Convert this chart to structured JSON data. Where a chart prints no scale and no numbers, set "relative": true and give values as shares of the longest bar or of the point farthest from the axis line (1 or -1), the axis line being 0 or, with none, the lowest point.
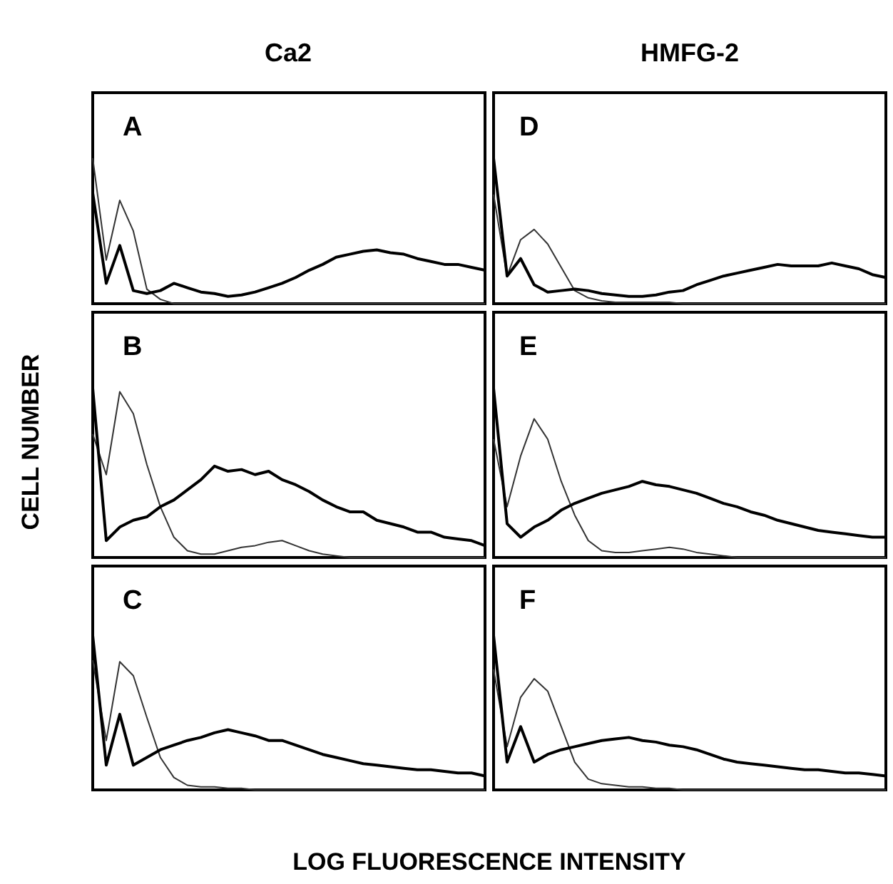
{
  "chart_data": [
    {
      "type": "line",
      "title": "Ca2",
      "subtitle": "A",
      "relative": true,
      "categories": [
        null,
        null,
        null,
        null,
        null,
        null,
        null,
        null,
        null,
        null,
        null,
        null,
        null,
        null,
        null,
        null,
        null,
        null,
        null,
        null,
        null,
        null,
        null,
        null,
        null,
        null,
        null,
        null,
        null,
        null
      ],
      "series": [
        {
          "color": "#333333",
          "values": [
            1,
            0.3,
            0.71,
            0.5,
            0.1,
            0.03,
            0,
            0,
            0,
            0,
            0,
            0,
            0,
            0,
            0,
            0,
            0,
            0,
            0,
            0,
            0,
            0,
            0,
            0,
            0,
            0,
            0,
            0,
            0,
            0
          ]
        },
        {
          "color": "#000000",
          "values": [
            0.76,
            0.14,
            0.4,
            0.09,
            0.07,
            0.09,
            0.14,
            0.11,
            0.08,
            0.07,
            0.05,
            0.06,
            0.08,
            0.11,
            0.14,
            0.18,
            0.23,
            0.27,
            0.32,
            0.34,
            0.36,
            0.37,
            0.35,
            0.34,
            0.31,
            0.29,
            0.27,
            0.27,
            0.25,
            0.23
          ]
        }
      ]
    },
    {
      "type": "line",
      "title": "HMFG-2",
      "subtitle": "D",
      "relative": true,
      "categories": [
        null,
        null,
        null,
        null,
        null,
        null,
        null,
        null,
        null,
        null,
        null,
        null,
        null,
        null,
        null,
        null,
        null,
        null,
        null,
        null,
        null,
        null,
        null,
        null,
        null,
        null,
        null,
        null,
        null,
        null
      ],
      "series": [
        {
          "color": "#333333",
          "values": [
            0.75,
            0.19,
            0.44,
            0.51,
            0.41,
            0.25,
            0.09,
            0.04,
            0.02,
            0.01,
            0.01,
            0.01,
            0.01,
            0.01,
            0,
            0,
            0,
            0,
            0,
            0,
            0,
            0,
            0,
            0,
            0,
            0,
            0,
            0,
            0,
            0
          ]
        },
        {
          "color": "#000000",
          "values": [
            1,
            0.19,
            0.31,
            0.13,
            0.08,
            0.09,
            0.1,
            0.09,
            0.07,
            0.06,
            0.05,
            0.05,
            0.06,
            0.08,
            0.09,
            0.13,
            0.16,
            0.19,
            0.21,
            0.23,
            0.25,
            0.27,
            0.26,
            0.26,
            0.26,
            0.28,
            0.26,
            0.24,
            0.2,
            0.18
          ]
        }
      ]
    },
    {
      "type": "line",
      "subtitle": "B",
      "ylabel": "CELL NUMBER",
      "relative": true,
      "categories": [
        null,
        null,
        null,
        null,
        null,
        null,
        null,
        null,
        null,
        null,
        null,
        null,
        null,
        null,
        null,
        null,
        null,
        null,
        null,
        null,
        null,
        null,
        null,
        null,
        null,
        null,
        null,
        null,
        null,
        null
      ],
      "series": [
        {
          "color": "#333333",
          "values": [
            0.73,
            0.49,
            0.98,
            0.85,
            0.55,
            0.3,
            0.12,
            0.04,
            0.02,
            0.02,
            0.04,
            0.06,
            0.07,
            0.09,
            0.1,
            0.07,
            0.04,
            0.02,
            0.01,
            0,
            0,
            0,
            0,
            0,
            0,
            0,
            0,
            0,
            0,
            0
          ]
        },
        {
          "color": "#000000",
          "values": [
            1,
            0.1,
            0.18,
            0.22,
            0.24,
            0.3,
            0.34,
            0.4,
            0.46,
            0.54,
            0.51,
            0.52,
            0.49,
            0.51,
            0.46,
            0.43,
            0.39,
            0.34,
            0.3,
            0.27,
            0.27,
            0.22,
            0.2,
            0.18,
            0.15,
            0.15,
            0.12,
            0.11,
            0.1,
            0.07
          ]
        }
      ]
    },
    {
      "type": "line",
      "subtitle": "E",
      "relative": true,
      "categories": [
        null,
        null,
        null,
        null,
        null,
        null,
        null,
        null,
        null,
        null,
        null,
        null,
        null,
        null,
        null,
        null,
        null,
        null,
        null,
        null,
        null,
        null,
        null,
        null,
        null,
        null,
        null,
        null,
        null,
        null
      ],
      "series": [
        {
          "color": "#333333",
          "values": [
            0.7,
            0.3,
            0.6,
            0.82,
            0.7,
            0.45,
            0.25,
            0.1,
            0.04,
            0.03,
            0.03,
            0.04,
            0.05,
            0.06,
            0.05,
            0.03,
            0.02,
            0.01,
            0,
            0,
            0,
            0,
            0,
            0,
            0,
            0,
            0,
            0,
            0,
            0
          ]
        },
        {
          "color": "#000000",
          "values": [
            1,
            0.2,
            0.12,
            0.18,
            0.22,
            0.28,
            0.32,
            0.35,
            0.38,
            0.4,
            0.42,
            0.45,
            0.43,
            0.42,
            0.4,
            0.38,
            0.35,
            0.32,
            0.3,
            0.27,
            0.25,
            0.22,
            0.2,
            0.18,
            0.16,
            0.15,
            0.14,
            0.13,
            0.12,
            0.12
          ]
        }
      ]
    },
    {
      "type": "line",
      "subtitle": "C",
      "xlabel": "LOG FLUORESCENCE INTENSITY",
      "relative": true,
      "categories": [
        null,
        null,
        null,
        null,
        null,
        null,
        null,
        null,
        null,
        null,
        null,
        null,
        null,
        null,
        null,
        null,
        null,
        null,
        null,
        null,
        null,
        null,
        null,
        null,
        null,
        null,
        null,
        null,
        null,
        null
      ],
      "series": [
        {
          "color": "#333333",
          "values": [
            0.84,
            0.32,
            0.83,
            0.74,
            0.47,
            0.21,
            0.08,
            0.03,
            0.02,
            0.02,
            0.01,
            0.01,
            0,
            0,
            0,
            0,
            0,
            0,
            0,
            0,
            0,
            0,
            0,
            0,
            0,
            0,
            0,
            0,
            0,
            0
          ]
        },
        {
          "color": "#000000",
          "values": [
            1,
            0.16,
            0.49,
            0.16,
            0.21,
            0.26,
            0.29,
            0.32,
            0.34,
            0.37,
            0.39,
            0.37,
            0.35,
            0.32,
            0.32,
            0.29,
            0.26,
            0.23,
            0.21,
            0.19,
            0.17,
            0.16,
            0.15,
            0.14,
            0.13,
            0.13,
            0.12,
            0.11,
            0.11,
            0.09
          ]
        }
      ]
    },
    {
      "type": "line",
      "subtitle": "F",
      "relative": true,
      "categories": [
        null,
        null,
        null,
        null,
        null,
        null,
        null,
        null,
        null,
        null,
        null,
        null,
        null,
        null,
        null,
        null,
        null,
        null,
        null,
        null,
        null,
        null,
        null,
        null,
        null,
        null,
        null,
        null,
        null,
        null
      ],
      "series": [
        {
          "color": "#333333",
          "values": [
            0.78,
            0.28,
            0.6,
            0.72,
            0.64,
            0.41,
            0.18,
            0.07,
            0.04,
            0.03,
            0.02,
            0.02,
            0.01,
            0.01,
            0,
            0,
            0,
            0,
            0,
            0,
            0,
            0,
            0,
            0,
            0,
            0,
            0,
            0,
            0,
            0
          ]
        },
        {
          "color": "#000000",
          "values": [
            1,
            0.18,
            0.41,
            0.18,
            0.23,
            0.26,
            0.28,
            0.3,
            0.32,
            0.33,
            0.34,
            0.32,
            0.31,
            0.29,
            0.28,
            0.26,
            0.23,
            0.2,
            0.18,
            0.17,
            0.16,
            0.15,
            0.14,
            0.13,
            0.13,
            0.12,
            0.11,
            0.11,
            0.1,
            0.09
          ]
        }
      ]
    }
  ]
}
